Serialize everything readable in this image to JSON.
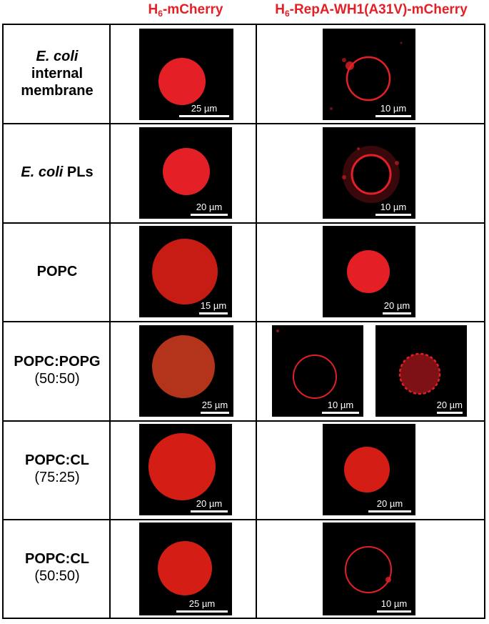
{
  "columns": [
    {
      "main": "H",
      "sub": "6",
      "rest": "-mCherry"
    },
    {
      "main": "H",
      "sub": "6",
      "rest": "-RepA-WH1(A31V)-mCherry"
    }
  ],
  "rows": [
    {
      "line1": "E. coli",
      "line1_style": "italic",
      "line2": "internal",
      "line3": "membrane",
      "scale_left": "25 µm",
      "scale_right": "10 µm"
    },
    {
      "line1": "E. coli",
      "line1_style": "italic",
      "line1_suffix": " PLs",
      "scale_left": "20 µm",
      "scale_right": "10 µm"
    },
    {
      "line1": "POPC",
      "scale_left": "15 µm",
      "scale_right": "20 µm"
    },
    {
      "line1": "POPC:POPG",
      "line2": "(50:50)",
      "scale_left": "25 µm",
      "scale_right_a": "10 µm",
      "scale_right_b": "20 µm"
    },
    {
      "line1": "POPC:CL",
      "line2": "(75:25)",
      "scale_left": "20 µm",
      "scale_right": "20 µm"
    },
    {
      "line1": "POPC:CL",
      "line2": "(50:50)",
      "scale_left": "25 µm",
      "scale_right": "10 µm"
    }
  ],
  "colors": {
    "header": "#e41f26",
    "fluorescence": "#e41f26",
    "background": "#000000"
  }
}
